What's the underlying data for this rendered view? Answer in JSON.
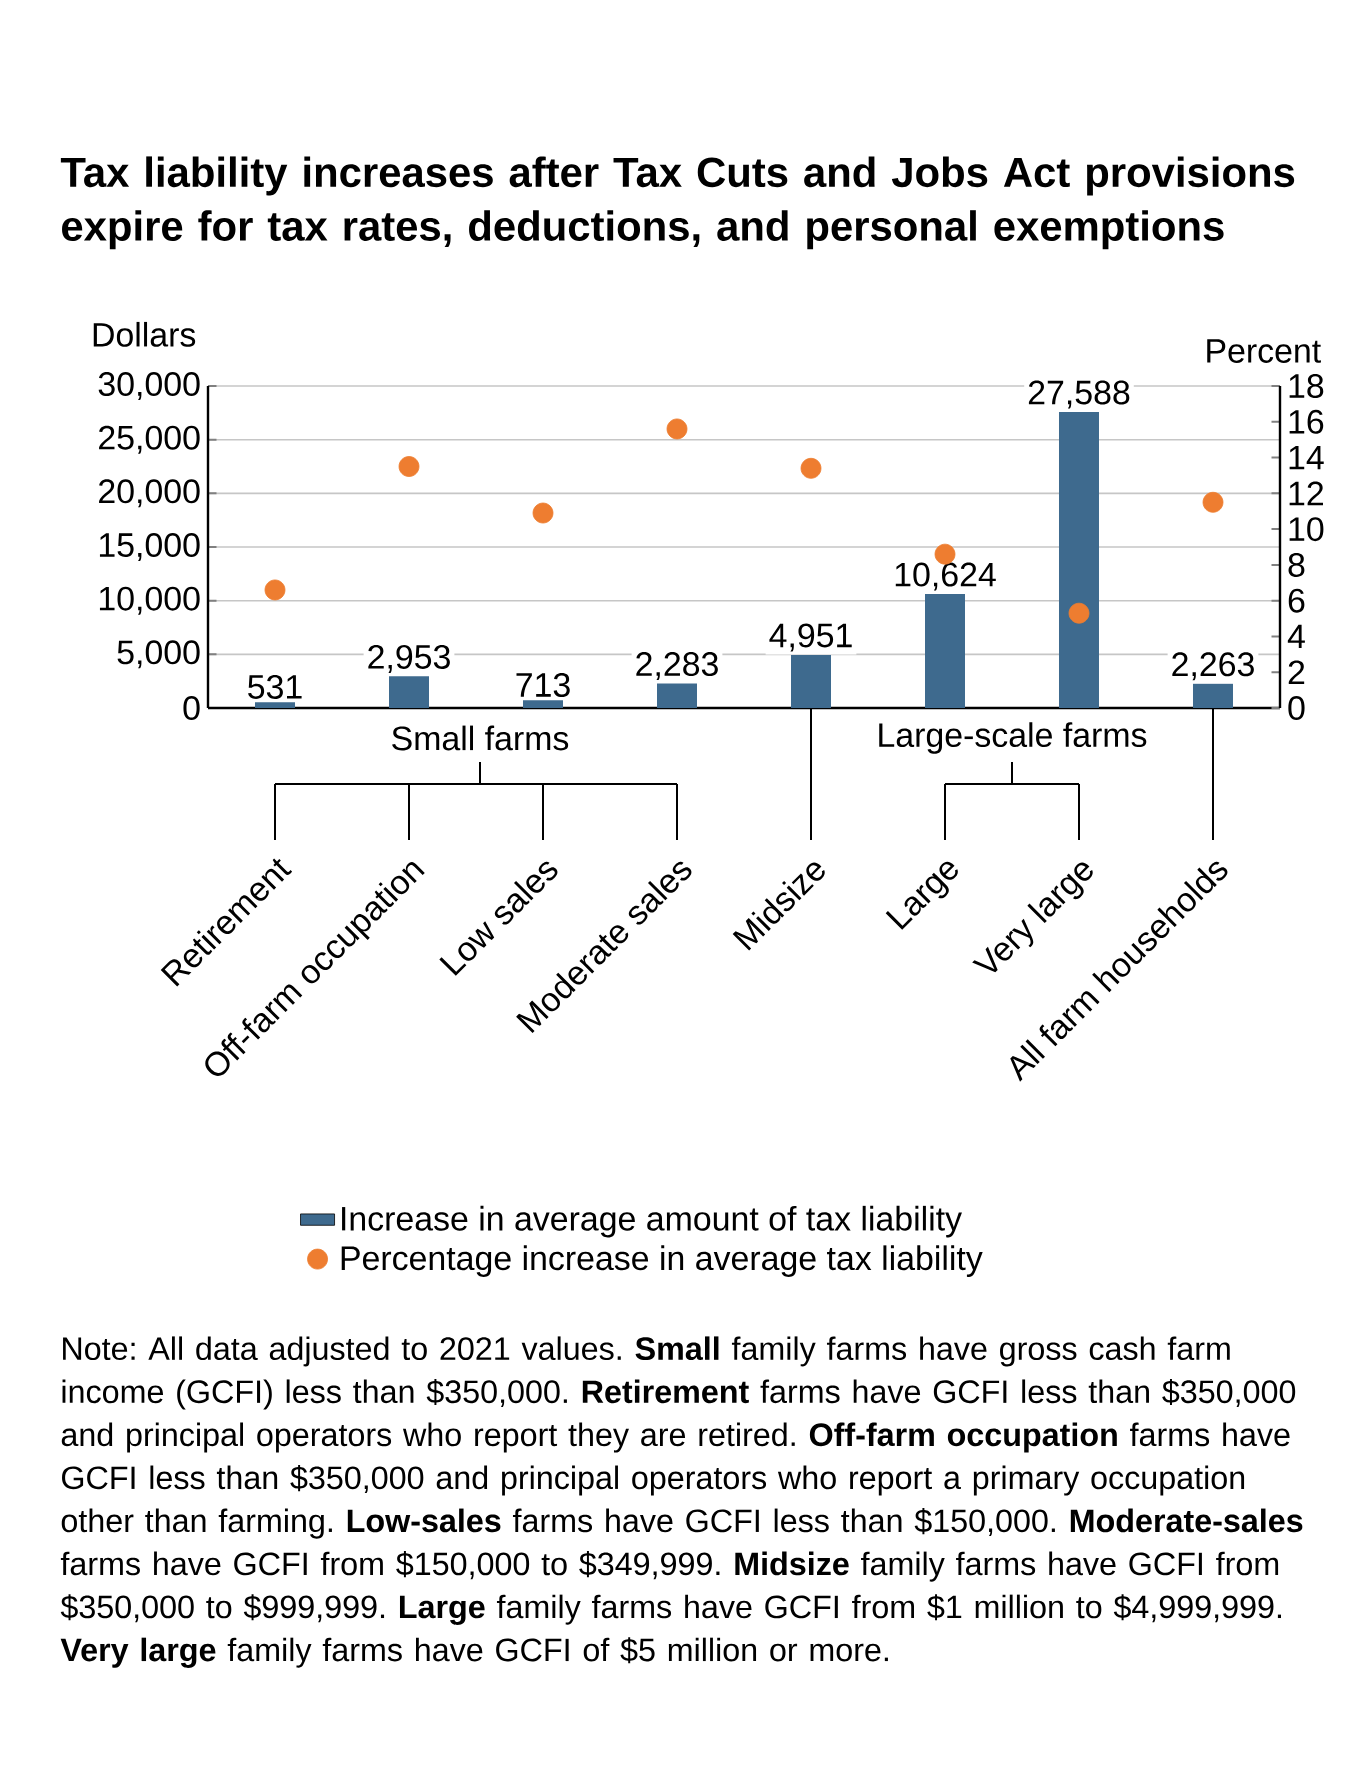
{
  "chart_data": {
    "type": "bar",
    "title": "Tax liability increases after Tax Cuts and Jobs Act provisions expire for tax rates, deductions, and personal exemptions",
    "ylabel": "Dollars",
    "y2label": "Percent",
    "categories": [
      "Retirement",
      "Off-farm occupation",
      "Low sales",
      "Moderate sales",
      "Midsize",
      "Large",
      "Very large",
      "All farm households"
    ],
    "series": [
      {
        "name": "Increase in average amount of tax liability",
        "color": "#3e6a8e",
        "values": [
          531,
          2953,
          713,
          2283,
          4951,
          10624,
          27588,
          2263
        ],
        "value_labels": [
          "531",
          "2,953",
          "713",
          "2,283",
          "4,951",
          "10,624",
          "27,588",
          "2,263"
        ]
      },
      {
        "name": "Percentage increase in average tax liability",
        "type": "scatter",
        "axis": "y2",
        "marker": "circle",
        "color": "#ee7d30",
        "values": [
          6.6,
          13.5,
          10.9,
          15.6,
          13.4,
          8.6,
          5.3,
          11.5
        ]
      }
    ],
    "ylim": [
      0,
      30000
    ],
    "yticks": [
      0,
      {
        "value": 5000,
        "label": "5,000"
      },
      {
        "value": 10000,
        "label": "10,000"
      },
      {
        "value": 15000,
        "label": "15,000"
      },
      {
        "value": 20000,
        "label": "20,000"
      },
      {
        "value": 25000,
        "label": "25,000"
      },
      {
        "value": 30000,
        "label": "30,000"
      }
    ],
    "y2lim": [
      0,
      18
    ],
    "y2ticks": [
      0,
      2,
      4,
      6,
      8,
      10,
      12,
      14,
      16,
      18
    ],
    "grid": "y",
    "legend": "bottom",
    "annotations": [
      "Small farms",
      "Large-scale farms",
      "Note: All data adjusted to 2021 values. **Small** family farms have gross cash farm income (GCFI) less than $350,000. **Retirement** farms have GCFI less than $350,000 and principal operators who report they are retired. **Off-farm occupation** farms have GCFI less than $350,000 and principal operators who report a primary occupation other than farming. **Low-sales** farms have GCFI less than $150,000. **Moderate-sales** farms have GCFI from $150,000 to $349,999. **Midsize** family farms have GCFI from $350,000 to $999,999. **Large** family farms have GCFI from $1 million to $4,999,999. **Very large** family farms have GCFI of $5 million or more."
    ]
  }
}
